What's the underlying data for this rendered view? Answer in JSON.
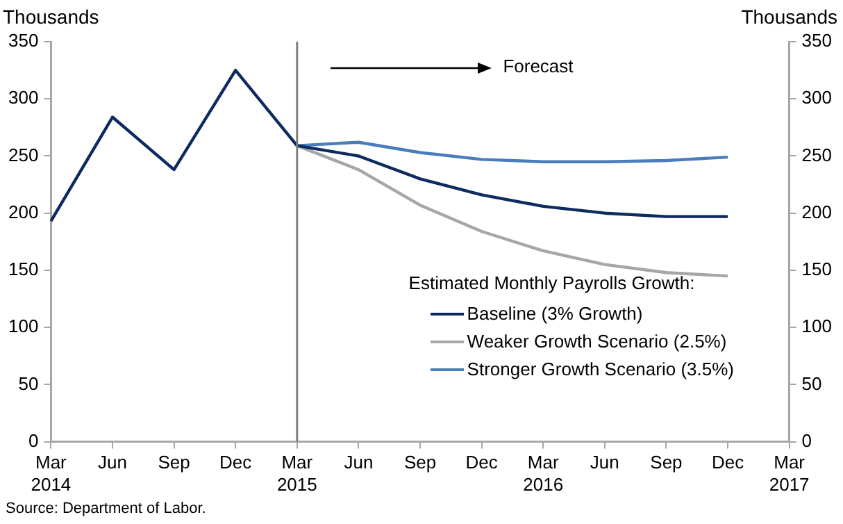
{
  "chart_data": {
    "type": "line",
    "ylabel": "Thousands",
    "y2label": "Thousands",
    "legend_title": "Estimated Monthly Payrolls Growth:",
    "categories": [
      "Mar 2014",
      "Jun",
      "Sep",
      "Dec",
      "Mar 2015",
      "Jun",
      "Sep",
      "Dec",
      "Mar 2016",
      "Jun",
      "Sep",
      "Dec",
      "Mar 2017"
    ],
    "series": [
      {
        "color": "#0d2b5e",
        "values": [
          193,
          284,
          238,
          325,
          259,
          null,
          null,
          null,
          null,
          null,
          null,
          null,
          null
        ]
      },
      {
        "name": "Baseline (3% Growth)",
        "color": "#0d2b5e",
        "values": [
          null,
          null,
          null,
          null,
          259,
          250,
          230,
          216,
          206,
          200,
          197,
          197,
          null
        ]
      },
      {
        "name": "Weaker Growth Scenario (2.5%)",
        "color": "#a6a6a6",
        "values": [
          null,
          null,
          null,
          null,
          259,
          238,
          207,
          184,
          167,
          155,
          148,
          145,
          null
        ]
      },
      {
        "name": "Stronger Growth Scenario (3.5%)",
        "color": "#4a7ebb",
        "values": [
          null,
          null,
          null,
          null,
          259,
          262,
          253,
          247,
          245,
          245,
          246,
          249,
          null
        ]
      }
    ],
    "ylim": [
      0,
      350
    ],
    "yticks": [
      0,
      50,
      100,
      150,
      200,
      250,
      300,
      350
    ],
    "y2lim": [
      0,
      350
    ],
    "y2ticks": [
      0,
      50,
      100,
      150,
      200,
      250,
      300,
      350
    ],
    "ref_lines": [
      {
        "axis": "x",
        "value": "Mar 2015",
        "color": "#7f7f7f"
      }
    ],
    "annotations": [
      "Forecast",
      "Source: Department of Labor."
    ],
    "grid": false,
    "legend": "bottom right",
    "marker": "none",
    "line_style": "solid"
  }
}
